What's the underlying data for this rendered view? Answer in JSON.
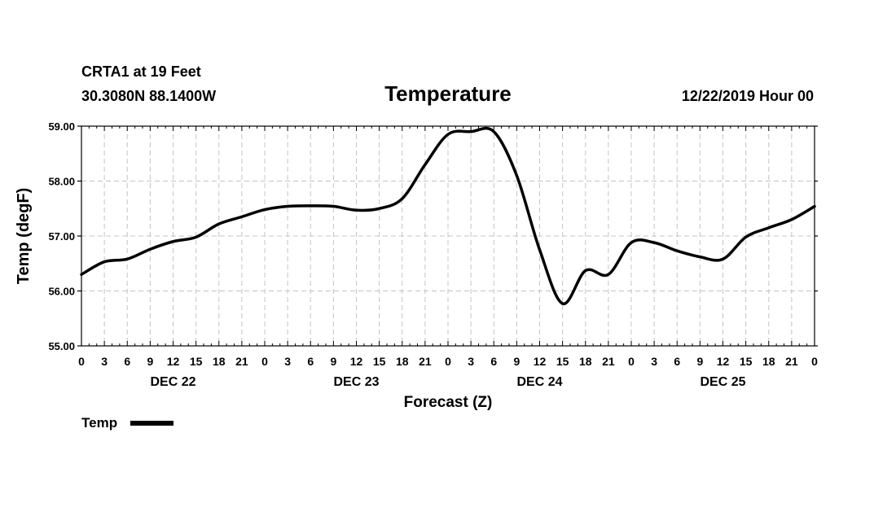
{
  "header": {
    "station": "CRTA1 at 19 Feet",
    "location": "30.3080N 88.1400W",
    "title": "Temperature",
    "run": "12/22/2019 Hour 00"
  },
  "chart_data": {
    "type": "line",
    "title": "Temperature",
    "xlabel": "Forecast (Z)",
    "ylabel": "Temp (degF)",
    "ylim": [
      55.0,
      59.0
    ],
    "y_ticks": [
      "55.00",
      "56.00",
      "57.00",
      "58.00",
      "59.00"
    ],
    "xlim_hours": [
      0,
      96
    ],
    "x_tick_step_hours": 3,
    "x_tick_labels": [
      "0",
      "3",
      "6",
      "9",
      "12",
      "15",
      "18",
      "21",
      "0",
      "3",
      "6",
      "9",
      "12",
      "15",
      "18",
      "21",
      "0",
      "3",
      "6",
      "9",
      "12",
      "15",
      "18",
      "21",
      "0",
      "3",
      "6",
      "9",
      "12",
      "15",
      "18",
      "21",
      "0"
    ],
    "day_labels": [
      "DEC 22",
      "DEC 23",
      "DEC 24",
      "DEC 25"
    ],
    "grid": true,
    "legend_position": "bottom-left",
    "series": [
      {
        "name": "Temp",
        "color": "#000000",
        "x_hours": [
          0,
          3,
          6,
          9,
          12,
          15,
          18,
          21,
          24,
          27,
          30,
          33,
          36,
          39,
          42,
          45,
          48,
          51,
          54,
          57,
          60,
          63,
          66,
          69,
          72,
          75,
          78,
          81,
          84,
          87,
          90,
          93,
          96
        ],
        "values": [
          56.3,
          56.53,
          56.58,
          56.76,
          56.9,
          56.98,
          57.22,
          57.35,
          57.48,
          57.54,
          57.55,
          57.54,
          57.47,
          57.5,
          57.68,
          58.3,
          58.85,
          58.9,
          58.9,
          58.1,
          56.75,
          55.77,
          56.37,
          56.3,
          56.88,
          56.88,
          56.73,
          56.62,
          56.58,
          56.98,
          57.15,
          57.3,
          57.54
        ]
      }
    ]
  }
}
